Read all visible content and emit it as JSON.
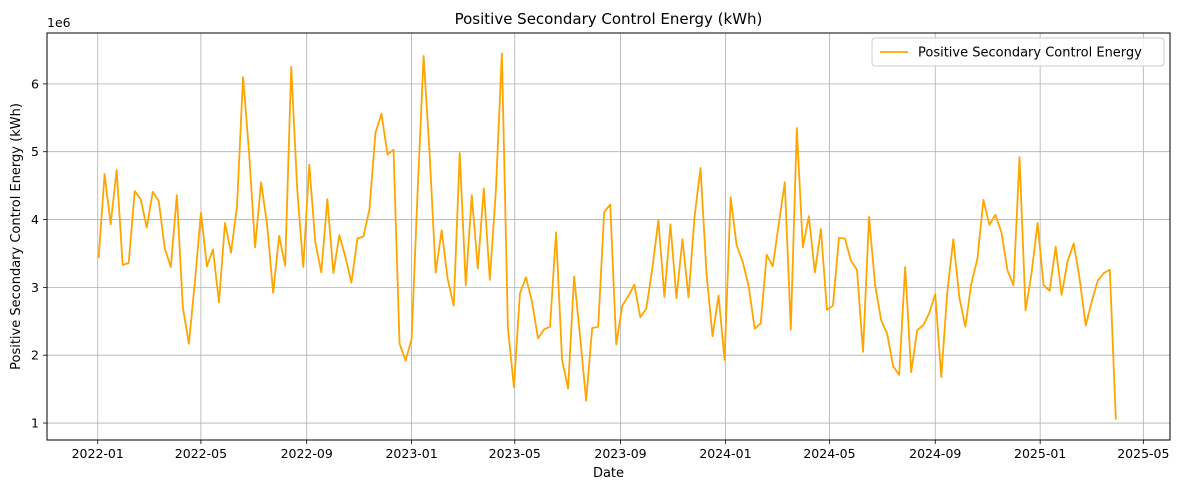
{
  "chart_data": {
    "type": "line",
    "title": "Positive Secondary Control Energy (kWh)",
    "xlabel": "Date",
    "ylabel": "Positive Secondary Control Energy (kWh)",
    "y_multiplier_label": "1e6",
    "y_multiplier": 1000000,
    "xlim": [
      "2021-11-03",
      "2025-06-01"
    ],
    "ylim": [
      0.75,
      6.75
    ],
    "x_ticks": [
      "2022-01",
      "2022-05",
      "2022-09",
      "2023-01",
      "2023-05",
      "2023-09",
      "2024-01",
      "2024-05",
      "2024-09",
      "2025-01",
      "2025-05"
    ],
    "y_ticks": [
      1,
      2,
      3,
      4,
      5,
      6
    ],
    "grid": true,
    "legend_position": "top-right",
    "color": "#FFA500",
    "series": [
      {
        "name": "Positive Secondary Control Energy",
        "x": [
          "2022-01-02",
          "2022-01-09",
          "2022-01-16",
          "2022-01-23",
          "2022-01-30",
          "2022-02-06",
          "2022-02-13",
          "2022-02-20",
          "2022-02-27",
          "2022-03-06",
          "2022-03-13",
          "2022-03-20",
          "2022-03-27",
          "2022-04-03",
          "2022-04-10",
          "2022-04-17",
          "2022-04-24",
          "2022-05-01",
          "2022-05-08",
          "2022-05-15",
          "2022-05-22",
          "2022-05-29",
          "2022-06-05",
          "2022-06-12",
          "2022-06-19",
          "2022-06-26",
          "2022-07-03",
          "2022-07-10",
          "2022-07-17",
          "2022-07-24",
          "2022-07-31",
          "2022-08-07",
          "2022-08-14",
          "2022-08-21",
          "2022-08-28",
          "2022-09-04",
          "2022-09-11",
          "2022-09-18",
          "2022-09-25",
          "2022-10-02",
          "2022-10-09",
          "2022-10-16",
          "2022-10-23",
          "2022-10-30",
          "2022-11-06",
          "2022-11-13",
          "2022-11-20",
          "2022-11-27",
          "2022-12-04",
          "2022-12-11",
          "2022-12-18",
          "2022-12-25",
          "2023-01-01",
          "2023-01-08",
          "2023-01-15",
          "2023-01-22",
          "2023-01-29",
          "2023-02-05",
          "2023-02-12",
          "2023-02-19",
          "2023-02-26",
          "2023-03-05",
          "2023-03-12",
          "2023-03-19",
          "2023-03-26",
          "2023-04-02",
          "2023-04-09",
          "2023-04-16",
          "2023-04-23",
          "2023-04-30",
          "2023-05-07",
          "2023-05-14",
          "2023-05-21",
          "2023-05-28",
          "2023-06-04",
          "2023-06-11",
          "2023-06-18",
          "2023-06-25",
          "2023-07-02",
          "2023-07-09",
          "2023-07-16",
          "2023-07-23",
          "2023-07-30",
          "2023-08-06",
          "2023-08-13",
          "2023-08-20",
          "2023-08-27",
          "2023-09-03",
          "2023-09-10",
          "2023-09-17",
          "2023-09-24",
          "2023-10-01",
          "2023-10-08",
          "2023-10-15",
          "2023-10-22",
          "2023-10-29",
          "2023-11-05",
          "2023-11-12",
          "2023-11-19",
          "2023-11-26",
          "2023-12-03",
          "2023-12-10",
          "2023-12-17",
          "2023-12-24",
          "2023-12-31",
          "2024-01-07",
          "2024-01-14",
          "2024-01-21",
          "2024-01-28",
          "2024-02-04",
          "2024-02-11",
          "2024-02-18",
          "2024-02-25",
          "2024-03-03",
          "2024-03-10",
          "2024-03-17",
          "2024-03-24",
          "2024-03-31",
          "2024-04-07",
          "2024-04-14",
          "2024-04-21",
          "2024-04-28",
          "2024-05-05",
          "2024-05-12",
          "2024-05-19",
          "2024-05-26",
          "2024-06-02",
          "2024-06-09",
          "2024-06-16",
          "2024-06-23",
          "2024-06-30",
          "2024-07-07",
          "2024-07-14",
          "2024-07-21",
          "2024-07-28",
          "2024-08-04",
          "2024-08-11",
          "2024-08-18",
          "2024-08-25",
          "2024-09-01",
          "2024-09-08",
          "2024-09-15",
          "2024-09-22",
          "2024-09-29",
          "2024-10-06",
          "2024-10-13",
          "2024-10-20",
          "2024-10-27",
          "2024-11-03",
          "2024-11-10",
          "2024-11-17",
          "2024-11-24",
          "2024-12-01",
          "2024-12-08",
          "2024-12-15",
          "2024-12-22",
          "2024-12-29",
          "2025-01-05",
          "2025-01-12",
          "2025-01-19",
          "2025-01-26",
          "2025-02-02",
          "2025-02-09",
          "2025-02-16",
          "2025-02-23",
          "2025-03-02",
          "2025-03-09",
          "2025-03-16",
          "2025-03-23",
          "2025-03-30"
        ],
        "values": [
          3.43,
          4.67,
          3.93,
          4.73,
          3.33,
          3.36,
          4.42,
          4.3,
          3.88,
          4.41,
          4.27,
          3.57,
          3.3,
          4.36,
          2.7,
          2.17,
          3.08,
          4.1,
          3.31,
          3.56,
          2.78,
          3.95,
          3.51,
          4.2,
          6.1,
          4.99,
          3.59,
          4.55,
          3.92,
          2.92,
          3.76,
          3.32,
          6.25,
          4.45,
          3.3,
          4.81,
          3.67,
          3.22,
          4.3,
          3.21,
          3.77,
          3.45,
          3.07,
          3.72,
          3.75,
          4.15,
          5.28,
          5.56,
          4.96,
          5.03,
          2.17,
          1.92,
          2.24,
          4.41,
          6.41,
          4.96,
          3.22,
          3.84,
          3.12,
          2.73,
          4.98,
          3.03,
          4.36,
          3.28,
          4.46,
          3.11,
          4.42,
          6.45,
          2.41,
          1.53,
          2.91,
          3.15,
          2.79,
          2.25,
          2.38,
          2.42,
          3.81,
          1.93,
          1.51,
          3.16,
          2.27,
          1.33,
          2.4,
          2.42,
          4.11,
          4.22,
          2.16,
          2.73,
          2.87,
          3.04,
          2.56,
          2.69,
          3.28,
          3.99,
          2.86,
          3.93,
          2.84,
          3.71,
          2.85,
          4.03,
          4.76,
          3.2,
          2.28,
          2.88,
          1.93,
          4.33,
          3.62,
          3.38,
          3.02,
          2.39,
          2.47,
          3.48,
          3.31,
          3.93,
          4.55,
          2.38,
          5.35,
          3.59,
          4.05,
          3.22,
          3.86,
          2.67,
          2.73,
          3.73,
          3.72,
          3.39,
          3.26,
          2.05,
          4.04,
          3.04,
          2.52,
          2.32,
          1.84,
          1.71,
          3.3,
          1.75,
          2.37,
          2.44,
          2.62,
          2.9,
          1.68,
          2.93,
          3.71,
          2.85,
          2.42,
          3.06,
          3.42,
          4.29,
          3.92,
          4.07,
          3.81,
          3.25,
          3.03,
          4.92,
          2.66,
          3.21,
          3.95,
          3.03,
          2.95,
          3.6,
          2.89,
          3.39,
          3.65,
          3.12,
          2.44,
          2.79,
          3.1,
          3.21,
          3.26,
          1.05
        ]
      }
    ]
  }
}
